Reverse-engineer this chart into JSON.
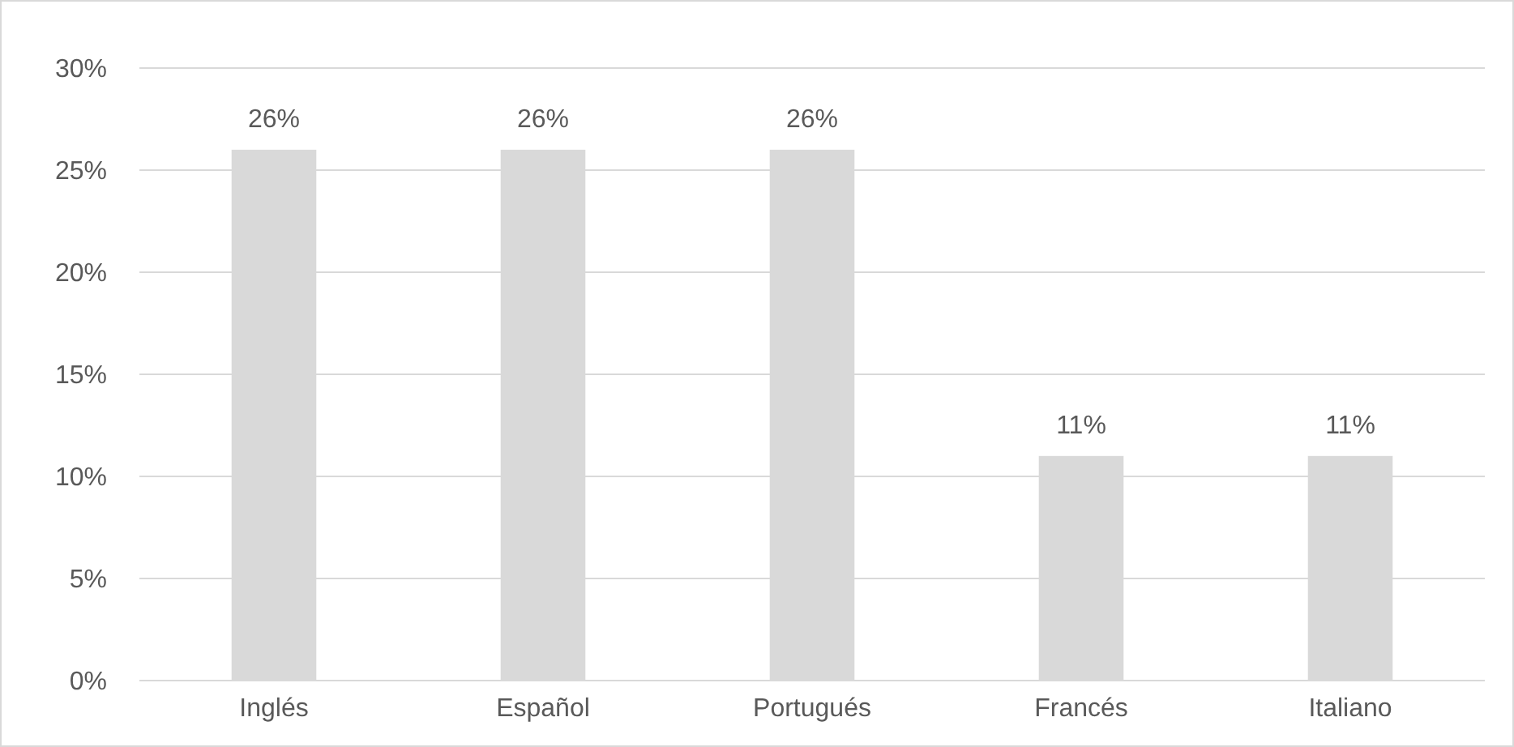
{
  "chart_data": {
    "type": "bar",
    "categories": [
      "Inglés",
      "Español",
      "Portugués",
      "Francés",
      "Italiano"
    ],
    "values": [
      26,
      26,
      26,
      11,
      11
    ],
    "color": "#d9d9d9",
    "value_labels": [
      "26%",
      "26%",
      "26%",
      "11%",
      "11%"
    ],
    "ylim": [
      0,
      30
    ],
    "yticks": [
      {
        "value": 0,
        "label": "0%"
      },
      {
        "value": 5,
        "label": "5%"
      },
      {
        "value": 10,
        "label": "10%"
      },
      {
        "value": 15,
        "label": "15%"
      },
      {
        "value": 20,
        "label": "20%"
      },
      {
        "value": 25,
        "label": "25%"
      },
      {
        "value": 30,
        "label": "30%"
      }
    ],
    "grid": "y"
  }
}
